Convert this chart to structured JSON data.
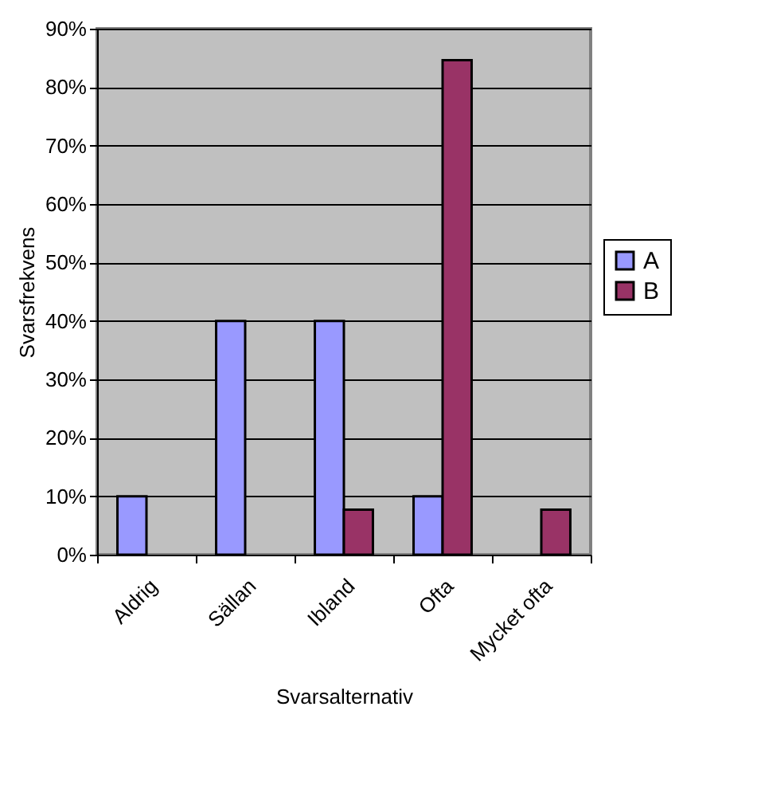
{
  "chart_data": {
    "type": "bar",
    "xlabel": "Svarsalternativ",
    "ylabel": "Svarsfrekvens",
    "categories": [
      "Aldrig",
      "Sällan",
      "Ibland",
      "Ofta",
      "Mycket ofta"
    ],
    "series": [
      {
        "name": "A",
        "color": "#9999ff",
        "values": [
          10,
          40,
          40,
          10,
          null
        ]
      },
      {
        "name": "B",
        "color": "#993366",
        "values": [
          null,
          null,
          7.7,
          84.6,
          7.7
        ]
      }
    ],
    "ylim": [
      0,
      90
    ],
    "yticks": [
      {
        "value": 0,
        "label": "0%"
      },
      {
        "value": 10,
        "label": "10%"
      },
      {
        "value": 20,
        "label": "20%"
      },
      {
        "value": 30,
        "label": "30%"
      },
      {
        "value": 40,
        "label": "40%"
      },
      {
        "value": 50,
        "label": "50%"
      },
      {
        "value": 60,
        "label": "60%"
      },
      {
        "value": 70,
        "label": "70%"
      },
      {
        "value": 80,
        "label": "80%"
      },
      {
        "value": 90,
        "label": "90%"
      }
    ],
    "grid": "y",
    "legend": "right"
  }
}
